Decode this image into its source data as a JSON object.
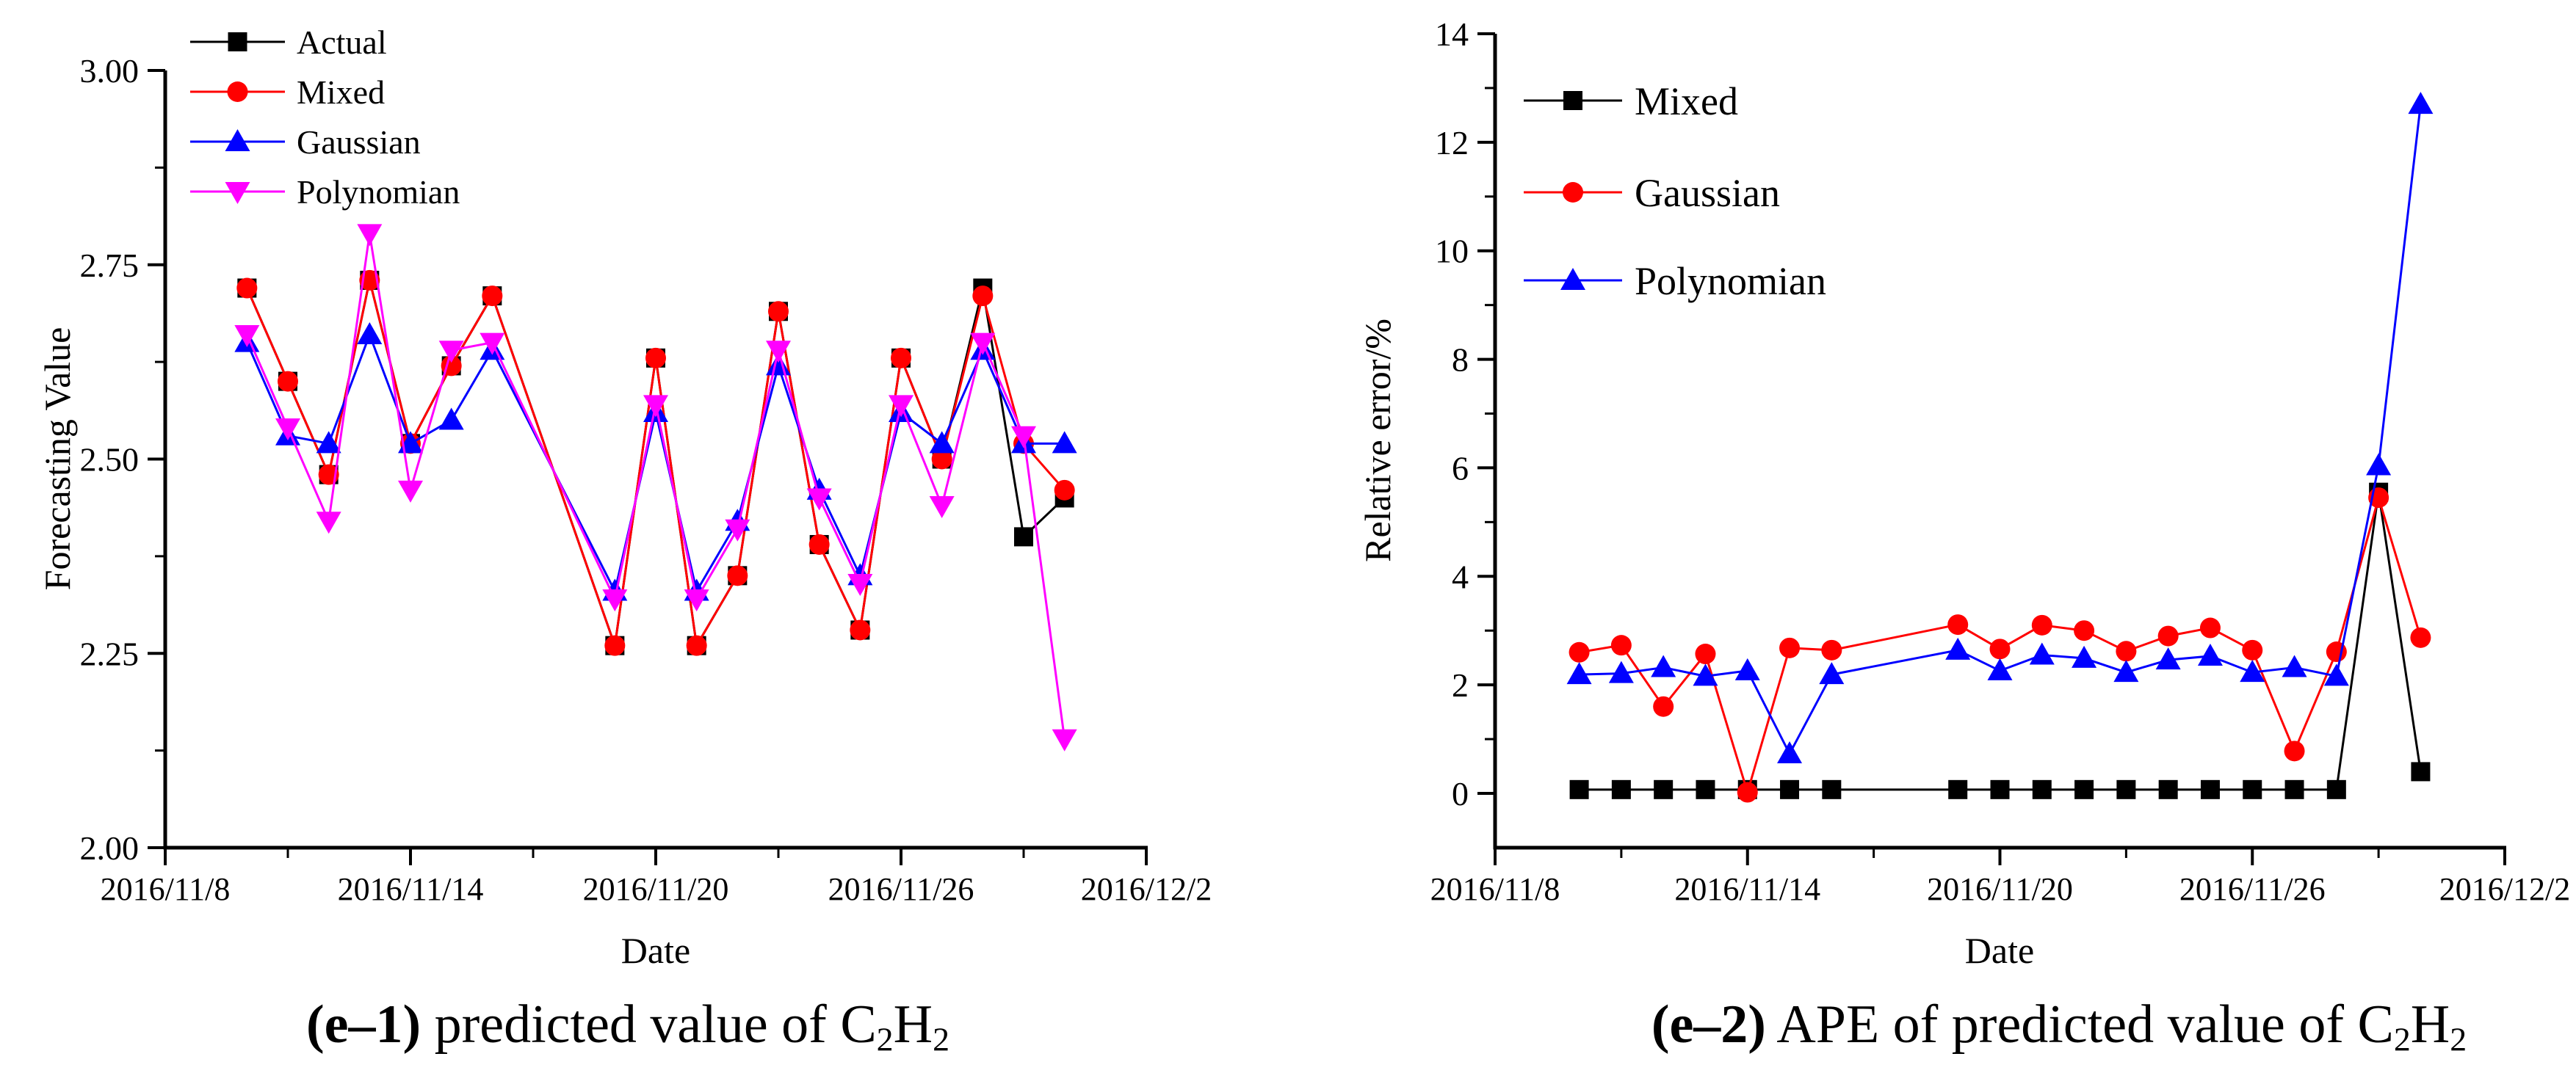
{
  "figure": {
    "background": "#ffffff",
    "accent_colors": {
      "black": "#000000",
      "red": "#ff0000",
      "blue": "#0000ff",
      "magenta": "#ff00ff"
    }
  },
  "captions": [
    {
      "tag": "(e–1)",
      "text": " predicted value of ",
      "f1": "C",
      "s1": "2",
      "f2": "H",
      "s2": "2"
    },
    {
      "tag": "(e–2)",
      "text": " APE of predicted value of ",
      "f1": "C",
      "s1": "2",
      "f2": "H",
      "s2": "2"
    }
  ],
  "chart_data": [
    {
      "id": "forecast",
      "type": "line",
      "title": "",
      "xlabel": "Date",
      "ylabel": "Forecasting Value",
      "ylim": [
        2.0,
        3.0
      ],
      "grid": false,
      "legend_position": "top-left",
      "x_days": [
        10,
        11,
        12,
        13,
        14,
        15,
        16,
        19,
        20,
        21,
        22,
        23,
        24,
        25,
        26,
        27,
        28,
        29,
        30
      ],
      "x_day_note": "day of November 2016; 31=Dec1, 32=Dec2",
      "x_major_ticks": [
        {
          "day": 8,
          "label": "2016/11/8"
        },
        {
          "day": 14,
          "label": "2016/11/14"
        },
        {
          "day": 20,
          "label": "2016/11/20"
        },
        {
          "day": 26,
          "label": "2016/11/26"
        },
        {
          "day": 32,
          "label": "2016/12/2"
        }
      ],
      "x_minor_ticks": [
        11,
        17,
        23,
        29
      ],
      "y_major_ticks": [
        {
          "v": 2.0,
          "label": "2.00"
        },
        {
          "v": 2.25,
          "label": "2.25"
        },
        {
          "v": 2.5,
          "label": "2.50"
        },
        {
          "v": 2.75,
          "label": "2.75"
        },
        {
          "v": 3.0,
          "label": "3.00"
        }
      ],
      "y_minor_ticks": [
        2.125,
        2.375,
        2.625,
        2.875
      ],
      "series": [
        {
          "name": "Actual",
          "color": "#000000",
          "marker": "square",
          "values": [
            2.72,
            2.6,
            2.48,
            2.73,
            2.52,
            2.62,
            2.71,
            2.26,
            2.63,
            2.26,
            2.35,
            2.69,
            2.39,
            2.28,
            2.63,
            2.5,
            2.72,
            2.4,
            2.45
          ]
        },
        {
          "name": "Mixed",
          "color": "#ff0000",
          "marker": "circle",
          "values": [
            2.72,
            2.6,
            2.48,
            2.73,
            2.52,
            2.62,
            2.71,
            2.26,
            2.63,
            2.26,
            2.35,
            2.69,
            2.39,
            2.28,
            2.63,
            2.5,
            2.71,
            2.52,
            2.46
          ]
        },
        {
          "name": "Gaussian",
          "color": "#0000ff",
          "marker": "triangle-up",
          "values": [
            2.65,
            2.53,
            2.52,
            2.66,
            2.52,
            2.55,
            2.64,
            2.33,
            2.56,
            2.33,
            2.42,
            2.62,
            2.46,
            2.35,
            2.56,
            2.52,
            2.64,
            2.52,
            2.52
          ]
        },
        {
          "name": "Polynomian",
          "color": "#ff00ff",
          "marker": "triangle-down",
          "values": [
            2.66,
            2.54,
            2.42,
            2.79,
            2.46,
            2.64,
            2.65,
            2.32,
            2.57,
            2.32,
            2.41,
            2.64,
            2.45,
            2.34,
            2.57,
            2.44,
            2.65,
            2.53,
            2.14
          ]
        }
      ],
      "geom": {
        "x0": 225,
        "x1": 1561,
        "day0": 8,
        "day1": 32,
        "v0": 2.0,
        "yv0": 1155,
        "v1": 3.0,
        "yv1": 96,
        "ytop": 96,
        "ybase": 1155,
        "xend": 1563,
        "ylab_x": 95,
        "ylab_y": 625,
        "xlab_x": 893,
        "xlab_y": 1312,
        "tick_label_y": 1226,
        "axis_w": 5
      },
      "legend": {
        "line_x0": 259,
        "line_x1": 388,
        "text_x": 404,
        "rows_y": [
          57,
          125,
          193,
          261
        ],
        "font": 46
      }
    },
    {
      "id": "ape",
      "type": "line",
      "title": "",
      "xlabel": "Date",
      "ylabel": "Relative error/%",
      "ylim": [
        0,
        14
      ],
      "grid": false,
      "legend_position": "top-left",
      "x_days": [
        10,
        11,
        12,
        13,
        14,
        15,
        16,
        19,
        20,
        21,
        22,
        23,
        24,
        25,
        26,
        27,
        28,
        29,
        30
      ],
      "x_day_note": "day of November 2016; 31=Dec1, 32=Dec2",
      "x_major_ticks": [
        {
          "day": 8,
          "label": "2016/11/8"
        },
        {
          "day": 14,
          "label": "2016/11/14"
        },
        {
          "day": 20,
          "label": "2016/11/20"
        },
        {
          "day": 26,
          "label": "2016/11/26"
        },
        {
          "day": 32,
          "label": "2016/12/2"
        }
      ],
      "x_minor_ticks": [
        11,
        17,
        23,
        29
      ],
      "y_major_ticks": [
        {
          "v": 0,
          "label": "0"
        },
        {
          "v": 2,
          "label": "2"
        },
        {
          "v": 4,
          "label": "4"
        },
        {
          "v": 6,
          "label": "6"
        },
        {
          "v": 8,
          "label": "8"
        },
        {
          "v": 10,
          "label": "10"
        },
        {
          "v": 12,
          "label": "12"
        },
        {
          "v": 14,
          "label": "14"
        }
      ],
      "y_minor_ticks": [
        1,
        3,
        5,
        7,
        9,
        11,
        13
      ],
      "series": [
        {
          "name": "Mixed",
          "color": "#000000",
          "marker": "square",
          "values": [
            0.07,
            0.07,
            0.07,
            0.07,
            0.07,
            0.07,
            0.07,
            0.07,
            0.07,
            0.07,
            0.07,
            0.07,
            0.07,
            0.07,
            0.07,
            0.07,
            0.07,
            5.55,
            0.4
          ]
        },
        {
          "name": "Gaussian",
          "color": "#ff0000",
          "marker": "circle",
          "values": [
            2.6,
            2.73,
            1.6,
            2.57,
            0.02,
            2.68,
            2.64,
            3.11,
            2.66,
            3.1,
            3.0,
            2.62,
            2.9,
            3.05,
            2.64,
            0.78,
            2.61,
            5.45,
            2.87
          ]
        },
        {
          "name": "Polynomian",
          "color": "#0000ff",
          "marker": "triangle-up",
          "values": [
            2.19,
            2.21,
            2.32,
            2.16,
            2.26,
            0.73,
            2.19,
            2.64,
            2.26,
            2.55,
            2.49,
            2.23,
            2.46,
            2.53,
            2.23,
            2.32,
            2.16,
            6.04,
            12.7
          ]
        }
      ],
      "geom": {
        "x0": 2036,
        "x1": 3411,
        "day0": 8,
        "day1": 32,
        "v0": 0,
        "yv0": 1081,
        "v1": 14,
        "yv1": 46,
        "ytop": 46,
        "ybase": 1155,
        "xend": 3413,
        "ylab_x": 1893,
        "ylab_y": 600,
        "xlab_x": 2723,
        "xlab_y": 1312,
        "tick_label_y": 1226,
        "axis_w": 5
      },
      "legend": {
        "line_x0": 2075,
        "line_x1": 2209,
        "text_x": 2226,
        "rows_y": [
          137,
          262,
          382
        ],
        "font": 54
      }
    }
  ],
  "style": {
    "tick_font": 46,
    "date_font": 44,
    "axis_title_font": 50,
    "series_line_width": 3,
    "marker_half": 13
  }
}
